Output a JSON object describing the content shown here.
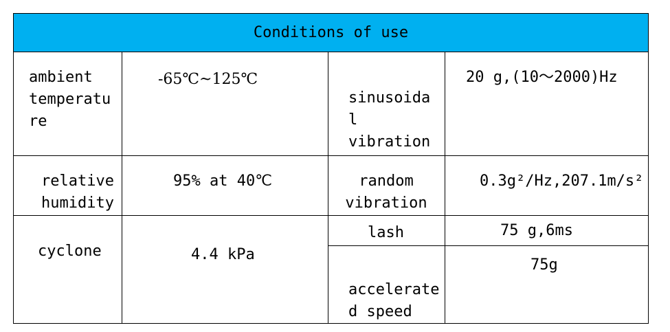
{
  "title": "Conditions of use",
  "rows": {
    "r1": {
      "label": "ambient\ntemperatu\nre",
      "value": "-65℃~125℃",
      "label2": "sinusoida\nl\nvibration",
      "value2": "20 g,(10～2000)Hz"
    },
    "r2": {
      "label": "relative\nhumidity",
      "value": "95% at 40℃",
      "label2": "random\nvibration",
      "value2": "0.3g²/Hz,207.1m/s²"
    },
    "r3": {
      "label": "cyclone",
      "value": "4.4 kPa",
      "label2a": "lash",
      "value2a": "75 g,6ms",
      "label2b": "accelerate\nd speed",
      "value2b": "75g"
    }
  }
}
